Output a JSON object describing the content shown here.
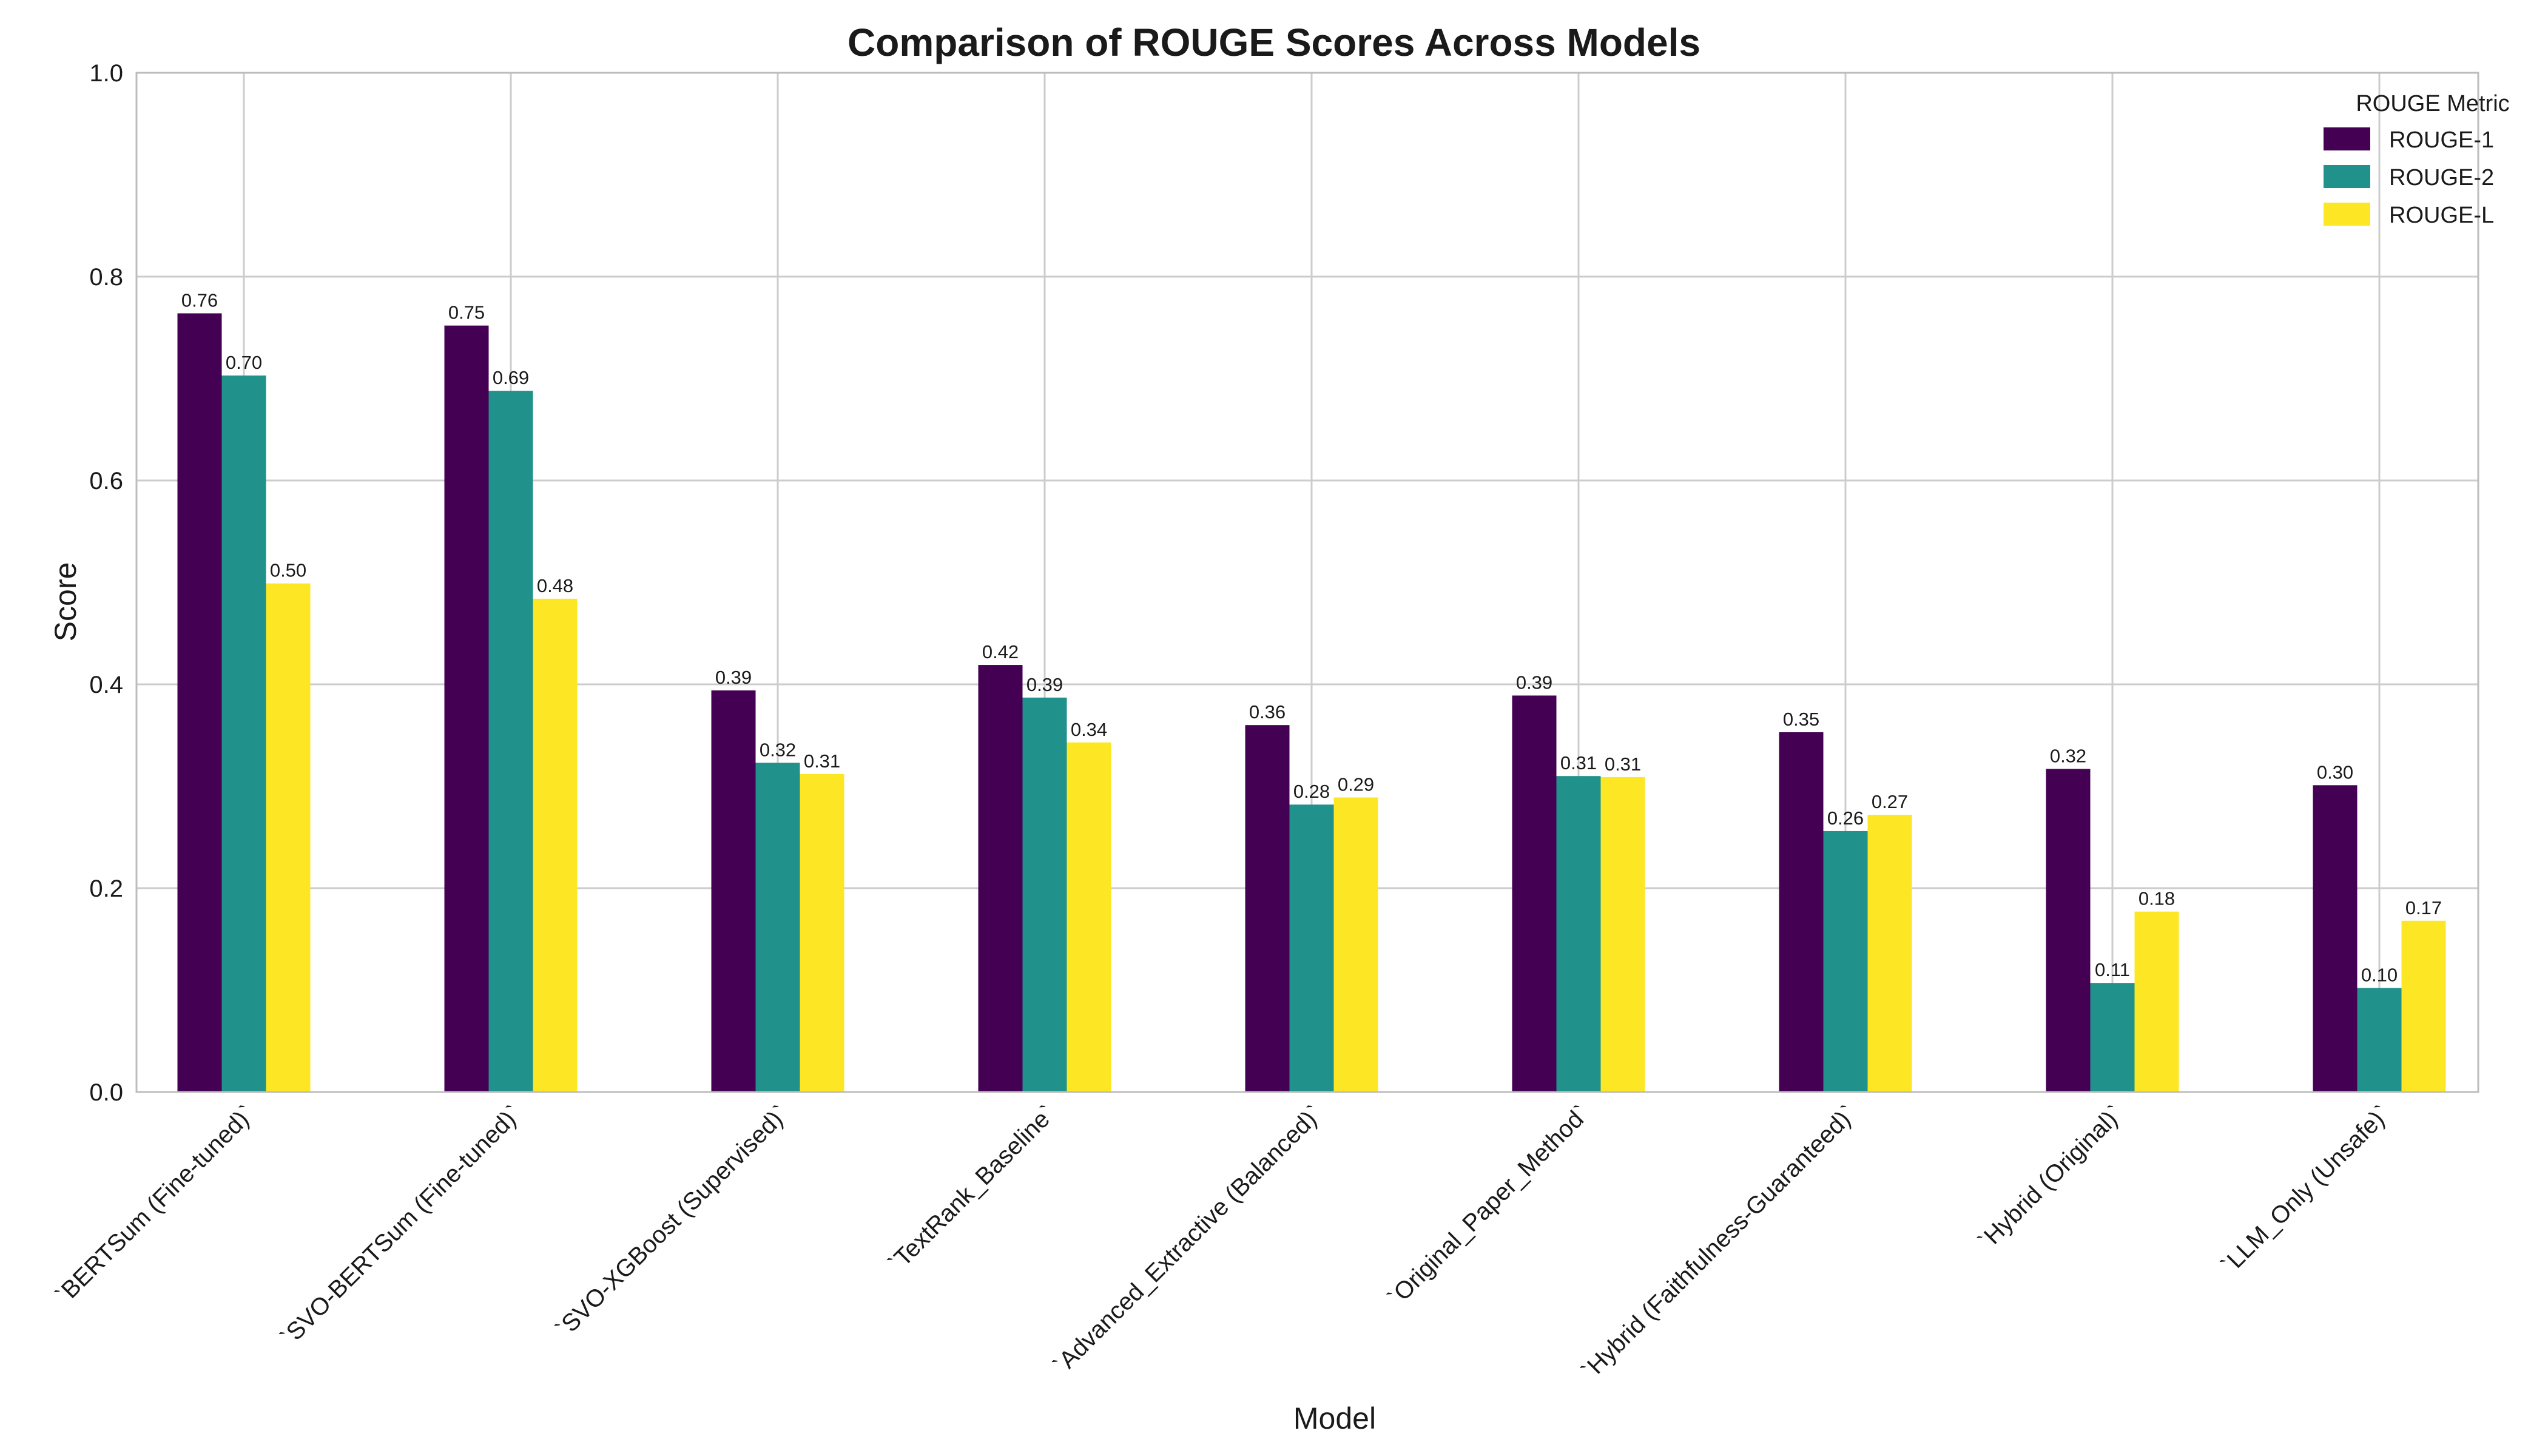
{
  "chart_data": {
    "type": "bar",
    "title": "Comparison of ROUGE Scores Across Models",
    "xlabel": "Model",
    "ylabel": "Score",
    "ylim": [
      0,
      1.0
    ],
    "yticks": [
      "0.0",
      "0.2",
      "0.4",
      "0.6",
      "0.8",
      "1.0"
    ],
    "grid": true,
    "legend_title": "ROUGE Metric",
    "legend_position": "top-right",
    "categories": [
      "`BERTSum (Fine-tuned)`",
      "`SVO-BERTSum (Fine-tuned)`",
      "`SVO-XGBoost (Supervised)`",
      "`TextRank_Baseline`",
      "`Advanced_Extractive (Balanced)`",
      "`Original_Paper_Method`",
      "`Hybrid (Faithfulness-Guaranteed)`",
      "`Hybrid (Original)`",
      "`LLM_Only (Unsafe)`"
    ],
    "series": [
      {
        "name": "ROUGE-1",
        "color": "#440154",
        "values": [
          0.764,
          0.752,
          0.394,
          0.419,
          0.36,
          0.389,
          0.353,
          0.317,
          0.301
        ]
      },
      {
        "name": "ROUGE-2",
        "color": "#21918c",
        "values": [
          0.703,
          0.688,
          0.323,
          0.387,
          0.282,
          0.31,
          0.256,
          0.107,
          0.102
        ]
      },
      {
        "name": "ROUGE-L",
        "color": "#fde725",
        "values": [
          0.499,
          0.484,
          0.312,
          0.343,
          0.289,
          0.309,
          0.272,
          0.177,
          0.168
        ]
      }
    ],
    "value_labels": [
      [
        "0.76",
        "0.75",
        "0.39",
        "0.42",
        "0.36",
        "0.39",
        "0.35",
        "0.32",
        "0.30"
      ],
      [
        "0.70",
        "0.69",
        "0.32",
        "0.39",
        "0.28",
        "0.31",
        "0.26",
        "0.11",
        "0.10"
      ],
      [
        "0.50",
        "0.48",
        "0.31",
        "0.34",
        "0.29",
        "0.31",
        "0.27",
        "0.18",
        "0.17"
      ]
    ]
  }
}
